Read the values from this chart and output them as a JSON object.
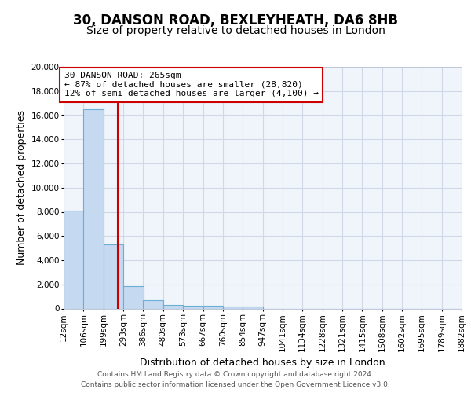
{
  "title_line1": "30, DANSON ROAD, BEXLEYHEATH, DA6 8HB",
  "title_line2": "Size of property relative to detached houses in London",
  "xlabel": "Distribution of detached houses by size in London",
  "ylabel": "Number of detached properties",
  "bins": [
    12,
    106,
    199,
    293,
    386,
    480,
    573,
    667,
    760,
    854,
    947,
    1041,
    1134,
    1228,
    1321,
    1415,
    1508,
    1602,
    1695,
    1789,
    1882
  ],
  "counts": [
    8100,
    16500,
    5300,
    1850,
    700,
    320,
    230,
    200,
    190,
    190,
    0,
    0,
    0,
    0,
    0,
    0,
    0,
    0,
    0,
    0
  ],
  "bar_color": "#c5d9f0",
  "bar_edge_color": "#6baed6",
  "vline_x": 265,
  "vline_color": "#cc0000",
  "annotation_line1": "30 DANSON ROAD: 265sqm",
  "annotation_line2": "← 87% of detached houses are smaller (28,820)",
  "annotation_line3": "12% of semi-detached houses are larger (4,100) →",
  "annotation_box_facecolor": "#ffffff",
  "annotation_box_edgecolor": "#cc0000",
  "ylim_max": 20000,
  "yticks": [
    0,
    2000,
    4000,
    6000,
    8000,
    10000,
    12000,
    14000,
    16000,
    18000,
    20000
  ],
  "footnote_line1": "Contains HM Land Registry data © Crown copyright and database right 2024.",
  "footnote_line2": "Contains public sector information licensed under the Open Government Licence v3.0.",
  "bg_color": "#f0f4fb",
  "grid_color": "#d0d8e8",
  "title_fontsize": 12,
  "subtitle_fontsize": 10,
  "axis_label_fontsize": 9,
  "tick_fontsize": 7.5
}
